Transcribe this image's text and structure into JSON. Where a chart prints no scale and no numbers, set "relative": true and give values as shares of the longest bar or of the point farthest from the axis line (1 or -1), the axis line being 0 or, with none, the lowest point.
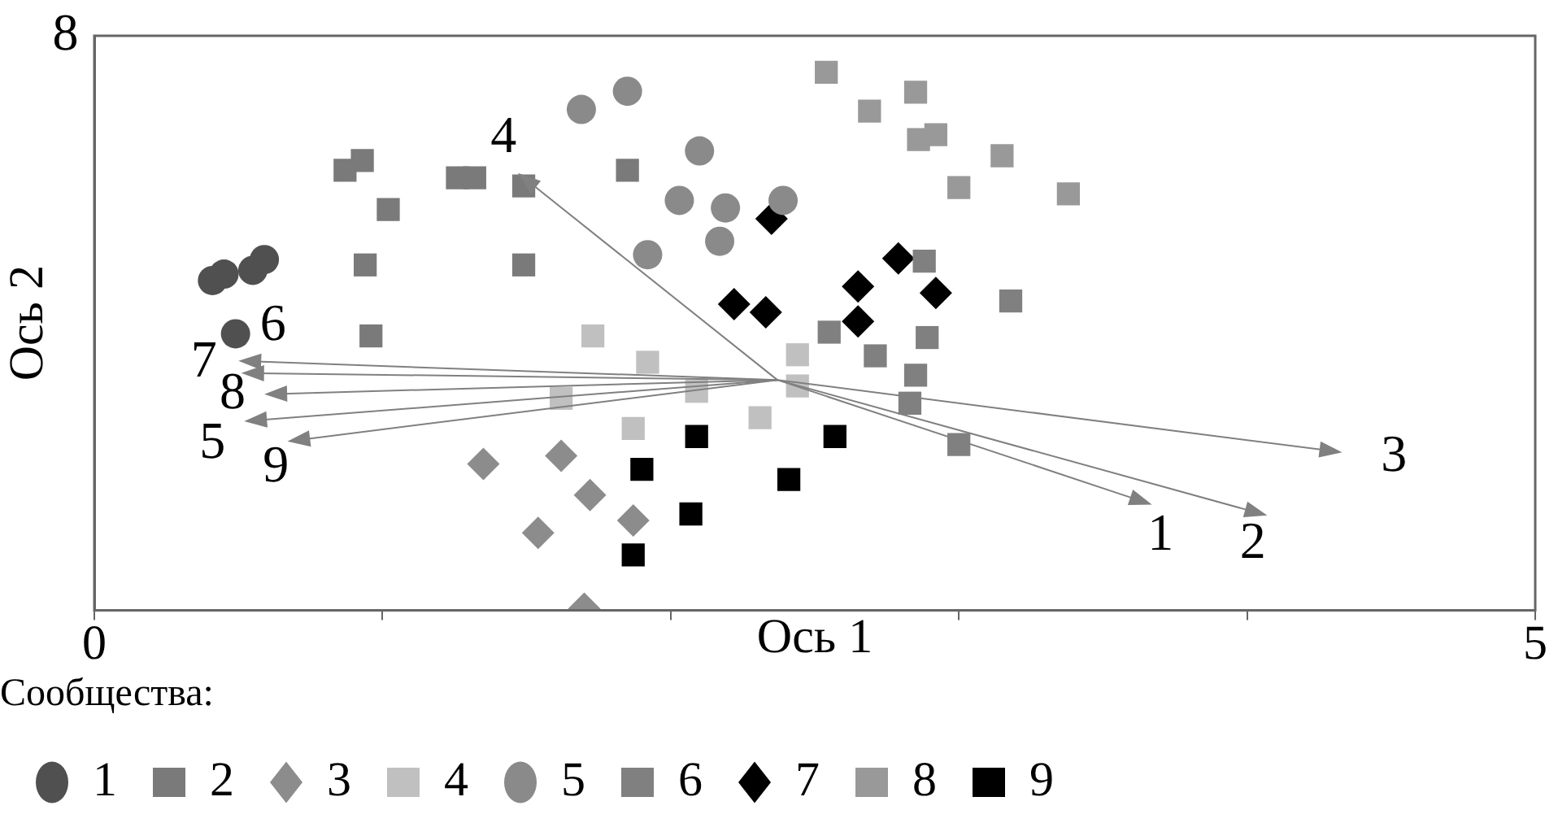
{
  "chart_data": {
    "type": "scatter",
    "relative": true,
    "xlabel": "Ось 1",
    "ylabel": "Ось 2",
    "legend_title": "Сообщества:",
    "legend": "bottom left",
    "grid": false,
    "xlim": [
      0,
      5
    ],
    "xticks": [
      0,
      {
        "value": 1,
        "label": null
      },
      {
        "value": 2,
        "label": null
      },
      {
        "value": 3,
        "label": null
      },
      {
        "value": 4,
        "label": null
      },
      5
    ],
    "series": [
      {
        "name": "1",
        "color": "#505050",
        "marker": "circle",
        "x": [
          0.41,
          0.45,
          0.55,
          0.59,
          0.49
        ],
        "values": [
          0.613,
          0.625,
          0.632,
          0.652,
          0.514
        ]
      },
      {
        "name": "2",
        "color": "#7a7a7a",
        "marker": "square",
        "x": [
          0.87,
          0.93,
          1.02,
          0.94,
          0.96,
          1.26,
          1.32,
          1.49,
          1.49,
          1.85
        ],
        "values": [
          0.818,
          0.836,
          0.745,
          0.642,
          0.51,
          0.804,
          0.804,
          0.789,
          0.642,
          0.818
        ]
      },
      {
        "name": "3",
        "color": "#8c8c8c",
        "marker": "diamond",
        "x": [
          1.35,
          1.62,
          1.72,
          1.54,
          1.87,
          1.7
        ],
        "values": [
          0.272,
          0.287,
          0.214,
          0.144,
          0.167,
          0.003
        ]
      },
      {
        "name": "4",
        "color": "#c0c0c0",
        "marker": "square",
        "x": [
          1.73,
          1.92,
          2.09,
          1.62,
          1.87,
          2.31,
          2.44,
          2.44
        ],
        "values": [
          0.51,
          0.461,
          0.407,
          0.394,
          0.338,
          0.358,
          0.475,
          0.417
        ]
      },
      {
        "name": "5",
        "color": "#8a8a8a",
        "marker": "circle",
        "x": [
          1.69,
          1.85,
          2.1,
          2.03,
          2.19,
          2.17,
          1.92,
          2.39
        ],
        "values": [
          0.931,
          0.965,
          0.854,
          0.762,
          0.748,
          0.686,
          0.661,
          0.762
        ]
      },
      {
        "name": "6",
        "color": "#808080",
        "marker": "square",
        "x": [
          2.55,
          2.71,
          2.88,
          2.89,
          2.85,
          2.83,
          3.0,
          3.18
        ],
        "values": [
          0.517,
          0.473,
          0.649,
          0.507,
          0.437,
          0.385,
          0.308,
          0.575
        ]
      },
      {
        "name": "7",
        "color": "#000000",
        "marker": "diamond",
        "x": [
          2.35,
          2.22,
          2.33,
          2.65,
          2.65,
          2.79,
          2.92
        ],
        "values": [
          0.728,
          0.569,
          0.554,
          0.602,
          0.537,
          0.654,
          0.59
        ]
      },
      {
        "name": "8",
        "color": "#999999",
        "marker": "square",
        "x": [
          2.54,
          2.69,
          2.85,
          2.86,
          2.92,
          3.0,
          3.15,
          3.38
        ],
        "values": [
          1,
          0.928,
          0.963,
          0.875,
          0.884,
          0.786,
          0.845,
          0.774
        ]
      },
      {
        "name": "9",
        "color": "#000000",
        "marker": "square",
        "x": [
          1.9,
          2.09,
          2.07,
          1.87,
          2.41,
          2.57
        ],
        "values": [
          0.262,
          0.323,
          0.179,
          0.103,
          0.243,
          0.323
        ]
      }
    ],
    "annotations": [
      "1",
      "2",
      "3",
      "4",
      "6",
      "7",
      "8",
      "5",
      "9",
      "8"
    ]
  }
}
